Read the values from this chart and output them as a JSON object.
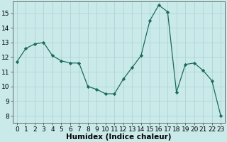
{
  "x": [
    0,
    1,
    2,
    3,
    4,
    5,
    6,
    7,
    8,
    9,
    10,
    11,
    12,
    13,
    14,
    15,
    16,
    17,
    18,
    19,
    20,
    21,
    22,
    23
  ],
  "y": [
    11.7,
    12.6,
    12.9,
    13.0,
    12.1,
    11.75,
    11.6,
    11.6,
    10.0,
    9.8,
    9.5,
    9.5,
    10.5,
    11.3,
    12.1,
    14.5,
    15.55,
    15.1,
    9.6,
    11.5,
    11.6,
    11.1,
    10.4,
    8.0
  ],
  "line_color": "#1a6b5a",
  "marker": "D",
  "marker_size": 2.2,
  "bg_color": "#caeaea",
  "grid_color": "#aed4d4",
  "xlabel": "Humidex (Indice chaleur)",
  "ylim": [
    7.5,
    15.8
  ],
  "xlim": [
    -0.5,
    23.5
  ],
  "yticks": [
    8,
    9,
    10,
    11,
    12,
    13,
    14,
    15
  ],
  "xticks": [
    0,
    1,
    2,
    3,
    4,
    5,
    6,
    7,
    8,
    9,
    10,
    11,
    12,
    13,
    14,
    15,
    16,
    17,
    18,
    19,
    20,
    21,
    22,
    23
  ],
  "tick_fontsize": 6.5,
  "label_fontsize": 7.5
}
